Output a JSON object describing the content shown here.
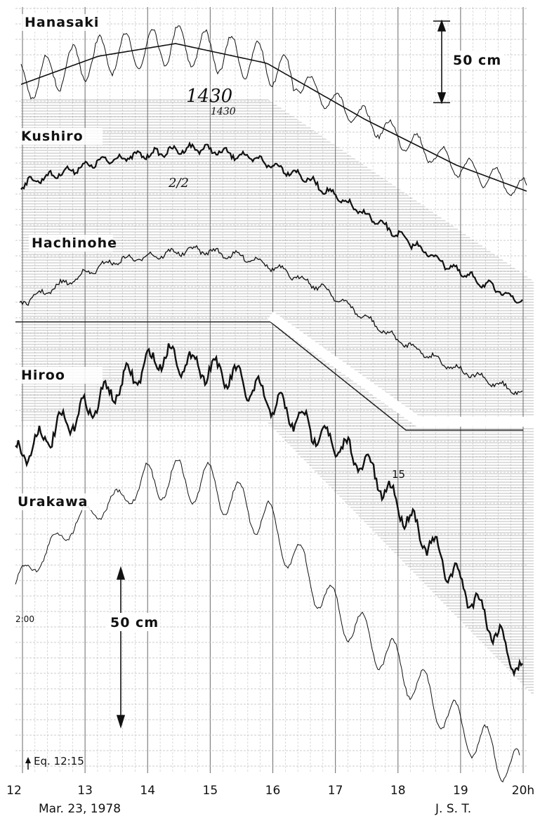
{
  "labels": {
    "stations": [
      "Hanasaki",
      "Kushiro",
      "Hachinohe",
      "Hiroo",
      "Urakawa"
    ],
    "scale_top": "50 cm",
    "scale_bottom": "50 cm",
    "annotations": [
      "1430",
      "1430",
      "2/2",
      "15",
      "2:00",
      "Eq. 12:15"
    ]
  },
  "x_axis": {
    "ticks": [
      "12",
      "13",
      "14",
      "15",
      "16",
      "17",
      "18",
      "19",
      "20h"
    ],
    "date": "Mar. 23, 1978",
    "zone": "J. S. T."
  }
}
